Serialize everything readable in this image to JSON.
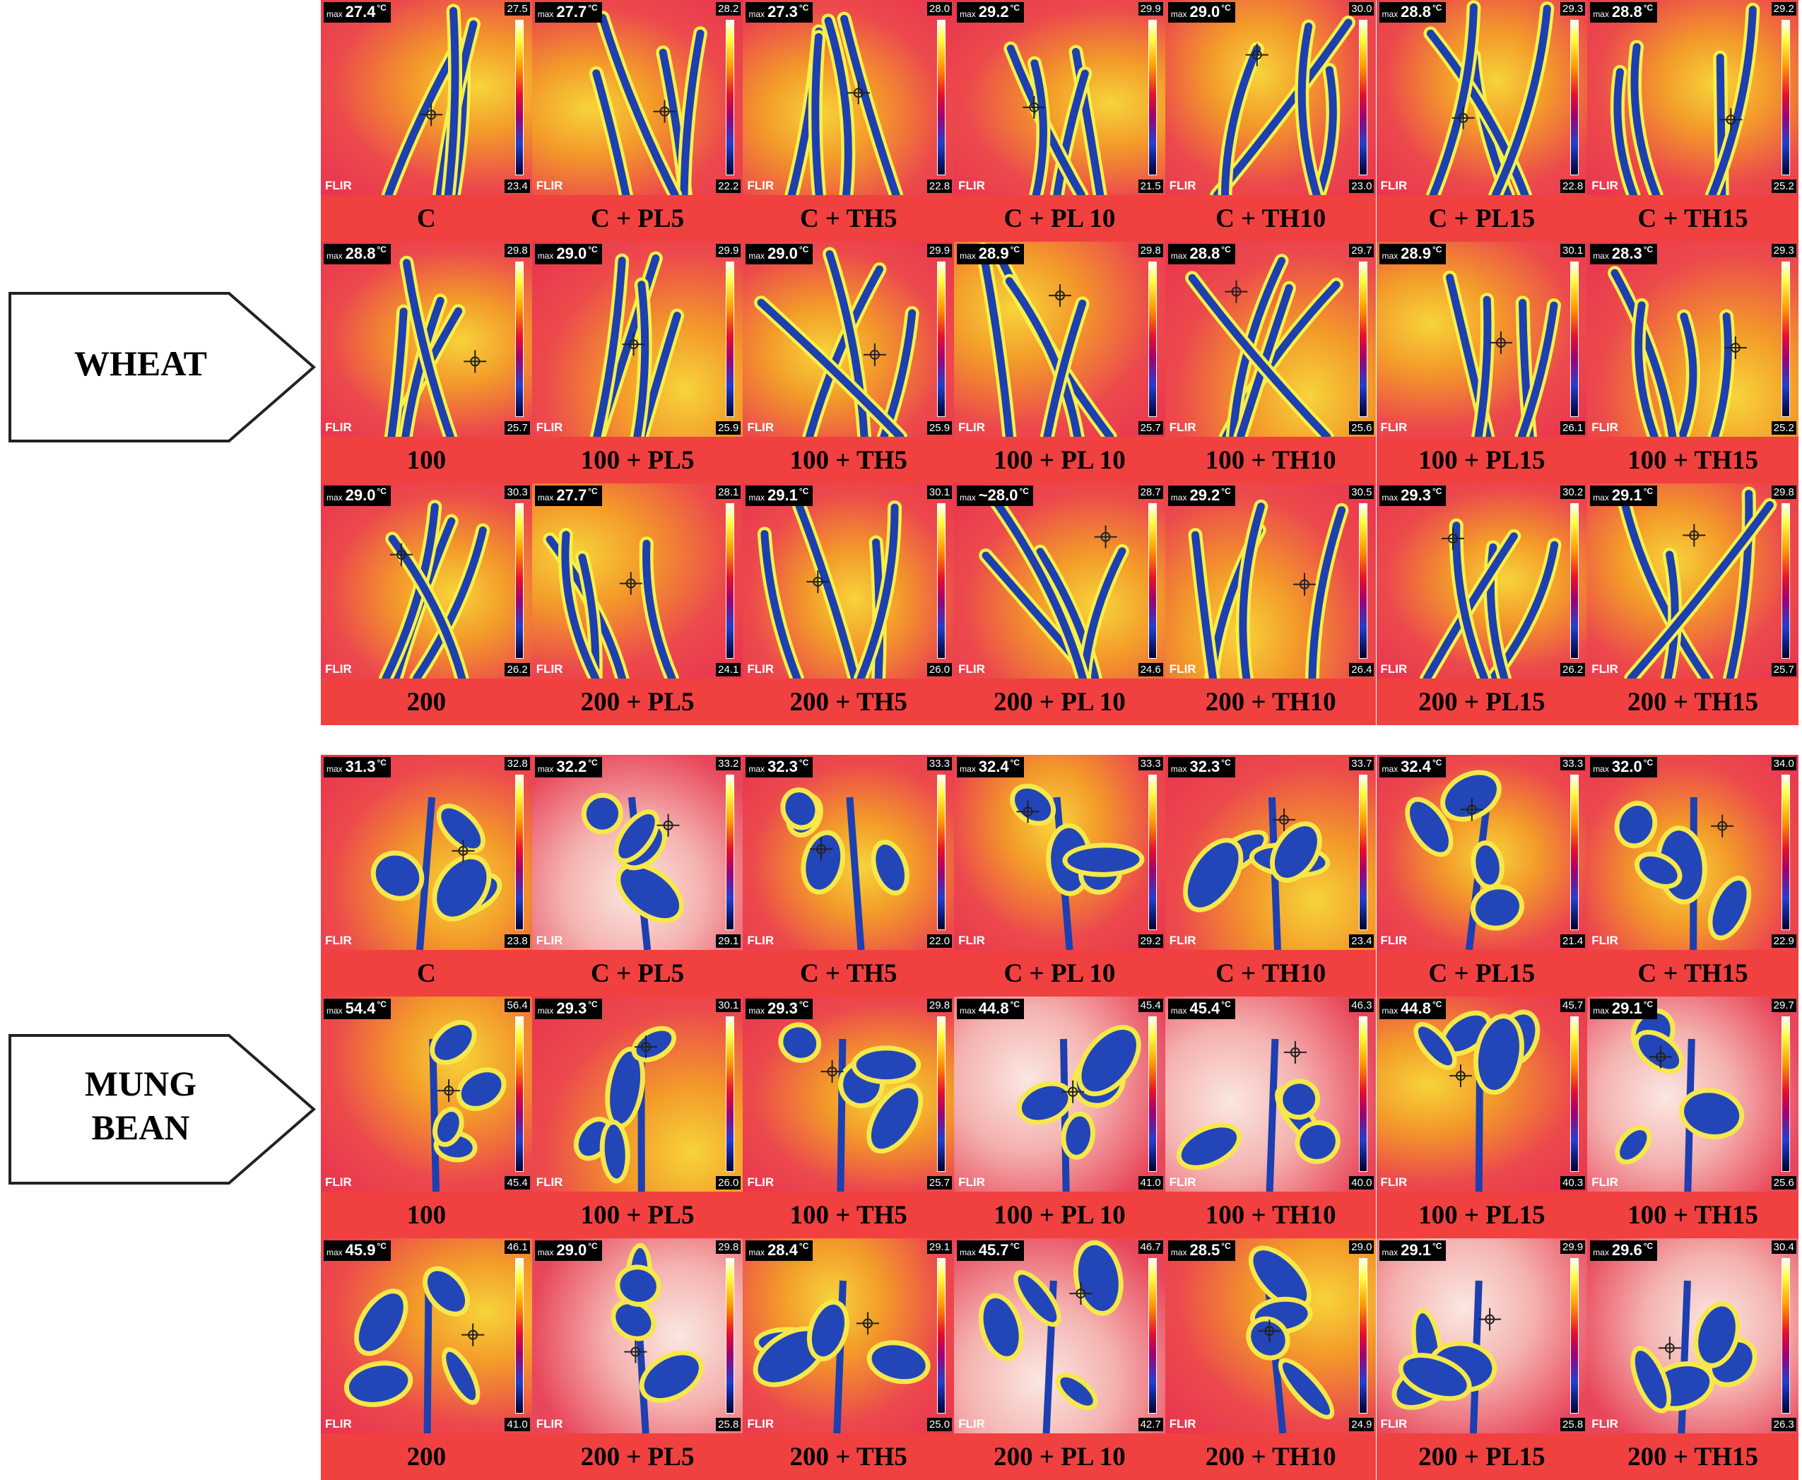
{
  "common": {
    "max_prefix": "max",
    "unit": "°C",
    "logo": "FLIR"
  },
  "groups": [
    {
      "label_lines": [
        "WHEAT"
      ],
      "rows": [
        {
          "panels": [
            {
              "caption": "C",
              "max": "27.4",
              "scale_top": "27.5",
              "scale_bottom": "23.4"
            },
            {
              "caption": "C + PL5",
              "max": "27.7",
              "scale_top": "28.2",
              "scale_bottom": "22.2"
            },
            {
              "caption": "C + TH5",
              "max": "27.3",
              "scale_top": "28.0",
              "scale_bottom": "22.8"
            },
            {
              "caption": "C + PL 10",
              "max": "29.2",
              "scale_top": "29.9",
              "scale_bottom": "21.5"
            },
            {
              "caption": "C + TH10",
              "max": "29.0",
              "scale_top": "30.0",
              "scale_bottom": "23.0"
            },
            {
              "caption": "C + PL15",
              "max": "28.8",
              "scale_top": "29.3",
              "scale_bottom": "22.8"
            },
            {
              "caption": "C + TH15",
              "max": "28.8",
              "scale_top": "29.2",
              "scale_bottom": "25.2"
            }
          ]
        },
        {
          "panels": [
            {
              "caption": "100",
              "max": "28.8",
              "scale_top": "29.8",
              "scale_bottom": "25.7"
            },
            {
              "caption": "100 + PL5",
              "max": "29.0",
              "scale_top": "29.9",
              "scale_bottom": "25.9"
            },
            {
              "caption": "100 + TH5",
              "max": "29.0",
              "scale_top": "29.9",
              "scale_bottom": "25.9"
            },
            {
              "caption": "100 + PL 10",
              "max": "28.9",
              "scale_top": "29.8",
              "scale_bottom": "25.7"
            },
            {
              "caption": "100 + TH10",
              "max": "28.8",
              "scale_top": "29.7",
              "scale_bottom": "25.6"
            },
            {
              "caption": "100 + PL15",
              "max": "28.9",
              "scale_top": "30.1",
              "scale_bottom": "26.1"
            },
            {
              "caption": "100 + TH15",
              "max": "28.3",
              "scale_top": "29.3",
              "scale_bottom": "25.2"
            }
          ]
        },
        {
          "panels": [
            {
              "caption": "200",
              "max": "29.0",
              "scale_top": "30.3",
              "scale_bottom": "26.2"
            },
            {
              "caption": "200 + PL5",
              "max": "27.7",
              "scale_top": "28.1",
              "scale_bottom": "24.1"
            },
            {
              "caption": "200 + TH5",
              "max": "29.1",
              "scale_top": "30.1",
              "scale_bottom": "26.0"
            },
            {
              "caption": "200 + PL 10",
              "max": "~28.0",
              "scale_top": "28.7",
              "scale_bottom": "24.6"
            },
            {
              "caption": "200 + TH10",
              "max": "29.2",
              "scale_top": "30.5",
              "scale_bottom": "26.4"
            },
            {
              "caption": "200 + PL15",
              "max": "29.3",
              "scale_top": "30.2",
              "scale_bottom": "26.2"
            },
            {
              "caption": "200 + TH15",
              "max": "29.1",
              "scale_top": "29.8",
              "scale_bottom": "25.7"
            }
          ]
        }
      ]
    },
    {
      "label_lines": [
        "MUNG",
        "BEAN"
      ],
      "rows": [
        {
          "panels": [
            {
              "caption": "C",
              "max": "31.3",
              "scale_top": "32.8",
              "scale_bottom": "23.8"
            },
            {
              "caption": "C + PL5",
              "max": "32.2",
              "scale_top": "33.2",
              "scale_bottom": "29.1"
            },
            {
              "caption": "C + TH5",
              "max": "32.3",
              "scale_top": "33.3",
              "scale_bottom": "22.0"
            },
            {
              "caption": "C + PL 10",
              "max": "32.4",
              "scale_top": "33.3",
              "scale_bottom": "29.2"
            },
            {
              "caption": "C + TH10",
              "max": "32.3",
              "scale_top": "33.7",
              "scale_bottom": "23.4"
            },
            {
              "caption": "C + PL15",
              "max": "32.4",
              "scale_top": "33.3",
              "scale_bottom": "21.4"
            },
            {
              "caption": "C + TH15",
              "max": "32.0",
              "scale_top": "34.0",
              "scale_bottom": "22.9"
            }
          ]
        },
        {
          "panels": [
            {
              "caption": "100",
              "max": "54.4",
              "scale_top": "56.4",
              "scale_bottom": "45.4"
            },
            {
              "caption": "100 + PL5",
              "max": "29.3",
              "scale_top": "30.1",
              "scale_bottom": "26.0"
            },
            {
              "caption": "100 + TH5",
              "max": "29.3",
              "scale_top": "29.8",
              "scale_bottom": "25.7"
            },
            {
              "caption": "100 + PL 10",
              "max": "44.8",
              "scale_top": "45.4",
              "scale_bottom": "41.0"
            },
            {
              "caption": "100 + TH10",
              "max": "45.4",
              "scale_top": "46.3",
              "scale_bottom": "40.0"
            },
            {
              "caption": "100 + PL15",
              "max": "44.8",
              "scale_top": "45.7",
              "scale_bottom": "40.3"
            },
            {
              "caption": "100 + TH15",
              "max": "29.1",
              "scale_top": "29.7",
              "scale_bottom": "25.6"
            }
          ]
        },
        {
          "panels": [
            {
              "caption": "200",
              "max": "45.9",
              "scale_top": "46.1",
              "scale_bottom": "41.0"
            },
            {
              "caption": "200 + PL5",
              "max": "29.0",
              "scale_top": "29.8",
              "scale_bottom": "25.8"
            },
            {
              "caption": "200 + TH5",
              "max": "28.4",
              "scale_top": "29.1",
              "scale_bottom": "25.0"
            },
            {
              "caption": "200 + PL 10",
              "max": "45.7",
              "scale_top": "46.7",
              "scale_bottom": "42.7"
            },
            {
              "caption": "200 + TH10",
              "max": "28.5",
              "scale_top": "29.0",
              "scale_bottom": "24.9"
            },
            {
              "caption": "200 + PL15",
              "max": "29.1",
              "scale_top": "29.9",
              "scale_bottom": "25.8"
            },
            {
              "caption": "200 + TH15",
              "max": "29.6",
              "scale_top": "30.4",
              "scale_bottom": "26.3"
            }
          ]
        }
      ]
    }
  ]
}
